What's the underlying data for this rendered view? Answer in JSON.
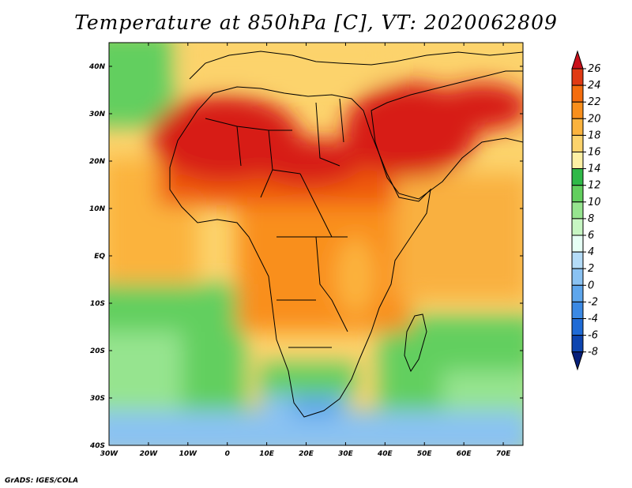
{
  "title": "Temperature at 850hPa [C], VT: 2020062809",
  "credit": "GrADS: IGES/COLA",
  "map": {
    "lon_range": [
      -30,
      75
    ],
    "lat_range": [
      -40,
      45
    ],
    "lon_labels": [
      "30W",
      "20W",
      "10W",
      "0",
      "10E",
      "20E",
      "30E",
      "40E",
      "50E",
      "60E",
      "70E"
    ],
    "lat_labels": [
      "40S",
      "30S",
      "20S",
      "10S",
      "EQ",
      "10N",
      "20N",
      "30N",
      "40N"
    ]
  },
  "colorbar": {
    "labels": [
      "26",
      "24",
      "22",
      "20",
      "18",
      "16",
      "14",
      "12",
      "10",
      "8",
      "6",
      "4",
      "2",
      "0",
      "-2",
      "-4",
      "-6",
      "-8"
    ],
    "colors": [
      "#c9101a",
      "#e03a13",
      "#f56d0e",
      "#f98f1c",
      "#fbb33e",
      "#fcd36c",
      "#fdf0a4",
      "#2fb948",
      "#62cf5e",
      "#96e48f",
      "#c7f6c3",
      "#e6fff5",
      "#b4dcf8",
      "#8ac2f2",
      "#5ea6ec",
      "#3b89e4",
      "#1f6bd6",
      "#0d45b0",
      "#061f7a"
    ]
  },
  "field": {
    "regions": [
      {
        "name": "sahara-north-africa",
        "color": "#d71f14"
      },
      {
        "name": "arabia",
        "color": "#d71f14"
      },
      {
        "name": "sahel",
        "color": "#ef5a10"
      },
      {
        "name": "central-africa",
        "color": "#f7a22e"
      },
      {
        "name": "atlantic-tropics",
        "color": "#fcd36c"
      },
      {
        "name": "indian-ocean",
        "color": "#f9b040"
      },
      {
        "name": "southern-ocean",
        "color": "#62cf5e"
      },
      {
        "name": "south-africa-cold",
        "color": "#5ea6ec"
      }
    ]
  }
}
